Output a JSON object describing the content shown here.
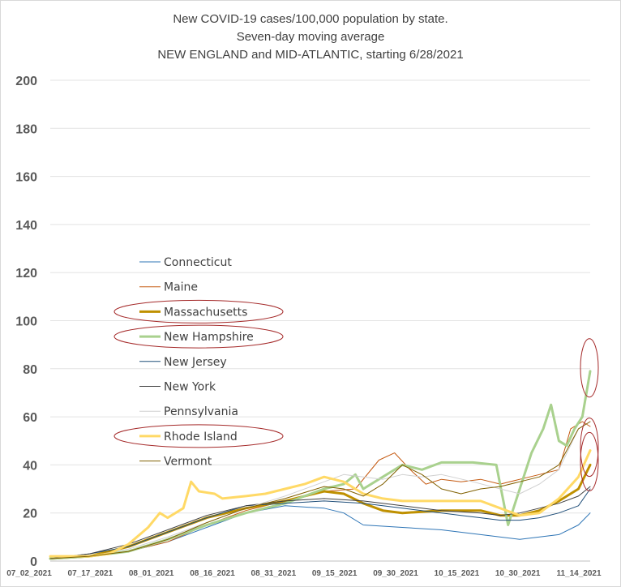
{
  "chart_data": {
    "type": "line",
    "title": [
      "New COVID-19 cases/100,000 population by state.",
      "Seven-day moving average",
      "NEW ENGLAND and MID-ATLANTIC, starting 6/28/2021"
    ],
    "ylim": [
      0,
      200
    ],
    "yticks": [
      0,
      20,
      40,
      60,
      80,
      100,
      120,
      140,
      160,
      180,
      200
    ],
    "xticks": [
      "07_02_2021",
      "07_17_2021",
      "08_01_2021",
      "08_16_2021",
      "08_31_2021",
      "09_15_2021",
      "09_30_2021",
      "10_15_2021",
      "10_30_2021",
      "11_14_2021"
    ],
    "x_range_days": [
      0,
      138
    ],
    "grid": "horizontal",
    "legend_position": "left-middle",
    "highlighted_series": [
      "Massachusetts",
      "New Hampshire",
      "Rhode Island"
    ],
    "series": [
      {
        "name": "Connecticut",
        "color": "#2e75b6",
        "width": 1,
        "points": [
          [
            0,
            1
          ],
          [
            10,
            2
          ],
          [
            20,
            4
          ],
          [
            30,
            8
          ],
          [
            40,
            14
          ],
          [
            50,
            20
          ],
          [
            60,
            23
          ],
          [
            70,
            22
          ],
          [
            75,
            20
          ],
          [
            80,
            15
          ],
          [
            90,
            14
          ],
          [
            100,
            13
          ],
          [
            110,
            11
          ],
          [
            120,
            9
          ],
          [
            130,
            11
          ],
          [
            135,
            15
          ],
          [
            138,
            20
          ]
        ]
      },
      {
        "name": "Maine",
        "color": "#c55a11",
        "width": 1,
        "points": [
          [
            0,
            1
          ],
          [
            10,
            2
          ],
          [
            20,
            4
          ],
          [
            30,
            8
          ],
          [
            40,
            15
          ],
          [
            50,
            21
          ],
          [
            60,
            25
          ],
          [
            70,
            29
          ],
          [
            78,
            30
          ],
          [
            84,
            42
          ],
          [
            88,
            45
          ],
          [
            92,
            38
          ],
          [
            96,
            32
          ],
          [
            100,
            34
          ],
          [
            105,
            33
          ],
          [
            110,
            34
          ],
          [
            115,
            32
          ],
          [
            120,
            34
          ],
          [
            125,
            36
          ],
          [
            130,
            38
          ],
          [
            133,
            55
          ],
          [
            136,
            58
          ],
          [
            138,
            56
          ]
        ]
      },
      {
        "name": "Massachusetts",
        "color": "#bf9000",
        "width": 3,
        "points": [
          [
            0,
            1
          ],
          [
            10,
            2
          ],
          [
            20,
            6
          ],
          [
            30,
            12
          ],
          [
            40,
            18
          ],
          [
            50,
            22
          ],
          [
            60,
            25
          ],
          [
            65,
            27
          ],
          [
            70,
            29
          ],
          [
            75,
            28
          ],
          [
            80,
            24
          ],
          [
            85,
            21
          ],
          [
            90,
            20
          ],
          [
            100,
            21
          ],
          [
            110,
            21
          ],
          [
            115,
            19
          ],
          [
            120,
            19
          ],
          [
            125,
            21
          ],
          [
            130,
            25
          ],
          [
            135,
            30
          ],
          [
            138,
            40
          ]
        ]
      },
      {
        "name": "New Hampshire",
        "color": "#a9d18e",
        "width": 3,
        "points": [
          [
            0,
            1
          ],
          [
            10,
            2
          ],
          [
            20,
            4
          ],
          [
            30,
            9
          ],
          [
            40,
            15
          ],
          [
            50,
            20
          ],
          [
            60,
            24
          ],
          [
            70,
            30
          ],
          [
            75,
            32
          ],
          [
            78,
            36
          ],
          [
            80,
            30
          ],
          [
            85,
            35
          ],
          [
            90,
            40
          ],
          [
            95,
            38
          ],
          [
            100,
            41
          ],
          [
            108,
            41
          ],
          [
            114,
            40
          ],
          [
            117,
            15
          ],
          [
            118,
            20
          ],
          [
            120,
            30
          ],
          [
            123,
            45
          ],
          [
            126,
            55
          ],
          [
            128,
            65
          ],
          [
            130,
            50
          ],
          [
            132,
            48
          ],
          [
            134,
            55
          ],
          [
            136,
            60
          ],
          [
            138,
            79
          ]
        ]
      },
      {
        "name": "New Jersey",
        "color": "#1f4e79",
        "width": 1,
        "points": [
          [
            0,
            1
          ],
          [
            10,
            3
          ],
          [
            20,
            6
          ],
          [
            30,
            12
          ],
          [
            40,
            18
          ],
          [
            50,
            23
          ],
          [
            60,
            24
          ],
          [
            70,
            25
          ],
          [
            80,
            24
          ],
          [
            90,
            22
          ],
          [
            100,
            20
          ],
          [
            105,
            19
          ],
          [
            110,
            18
          ],
          [
            115,
            17
          ],
          [
            120,
            17
          ],
          [
            125,
            18
          ],
          [
            130,
            20
          ],
          [
            135,
            23
          ],
          [
            138,
            30
          ]
        ]
      },
      {
        "name": "New York",
        "color": "#404040",
        "width": 1,
        "points": [
          [
            0,
            1
          ],
          [
            10,
            3
          ],
          [
            20,
            7
          ],
          [
            30,
            13
          ],
          [
            40,
            19
          ],
          [
            50,
            23
          ],
          [
            60,
            25
          ],
          [
            70,
            26
          ],
          [
            80,
            25
          ],
          [
            90,
            23
          ],
          [
            100,
            21
          ],
          [
            110,
            20
          ],
          [
            115,
            19
          ],
          [
            120,
            20
          ],
          [
            125,
            22
          ],
          [
            130,
            24
          ],
          [
            135,
            27
          ],
          [
            138,
            31
          ]
        ]
      },
      {
        "name": "Pennsylvania",
        "color": "#d0d0d0",
        "width": 1,
        "points": [
          [
            0,
            1
          ],
          [
            10,
            2
          ],
          [
            20,
            5
          ],
          [
            30,
            10
          ],
          [
            40,
            16
          ],
          [
            50,
            22
          ],
          [
            60,
            27
          ],
          [
            70,
            33
          ],
          [
            75,
            36
          ],
          [
            80,
            35
          ],
          [
            85,
            34
          ],
          [
            90,
            36
          ],
          [
            95,
            35
          ],
          [
            100,
            36
          ],
          [
            108,
            33
          ],
          [
            115,
            30
          ],
          [
            120,
            28
          ],
          [
            125,
            32
          ],
          [
            130,
            38
          ],
          [
            135,
            55
          ],
          [
            138,
            58
          ]
        ]
      },
      {
        "name": "Rhode Island",
        "color": "#ffd966",
        "width": 3,
        "points": [
          [
            0,
            2
          ],
          [
            10,
            2
          ],
          [
            15,
            3
          ],
          [
            20,
            7
          ],
          [
            25,
            14
          ],
          [
            28,
            20
          ],
          [
            30,
            18
          ],
          [
            34,
            22
          ],
          [
            36,
            33
          ],
          [
            38,
            29
          ],
          [
            42,
            28
          ],
          [
            44,
            26
          ],
          [
            50,
            27
          ],
          [
            55,
            28
          ],
          [
            60,
            30
          ],
          [
            65,
            32
          ],
          [
            70,
            35
          ],
          [
            75,
            33
          ],
          [
            80,
            28
          ],
          [
            85,
            26
          ],
          [
            90,
            25
          ],
          [
            100,
            25
          ],
          [
            110,
            25
          ],
          [
            115,
            22
          ],
          [
            120,
            19
          ],
          [
            125,
            20
          ],
          [
            130,
            26
          ],
          [
            135,
            35
          ],
          [
            138,
            46
          ]
        ]
      },
      {
        "name": "Vermont",
        "color": "#806000",
        "width": 1,
        "points": [
          [
            0,
            1
          ],
          [
            10,
            2
          ],
          [
            20,
            4
          ],
          [
            30,
            9
          ],
          [
            40,
            16
          ],
          [
            50,
            22
          ],
          [
            60,
            26
          ],
          [
            70,
            31
          ],
          [
            75,
            30
          ],
          [
            80,
            27
          ],
          [
            85,
            32
          ],
          [
            90,
            40
          ],
          [
            95,
            36
          ],
          [
            100,
            30
          ],
          [
            105,
            28
          ],
          [
            110,
            30
          ],
          [
            115,
            31
          ],
          [
            120,
            33
          ],
          [
            125,
            35
          ],
          [
            130,
            40
          ],
          [
            135,
            55
          ],
          [
            138,
            58
          ]
        ]
      }
    ]
  }
}
